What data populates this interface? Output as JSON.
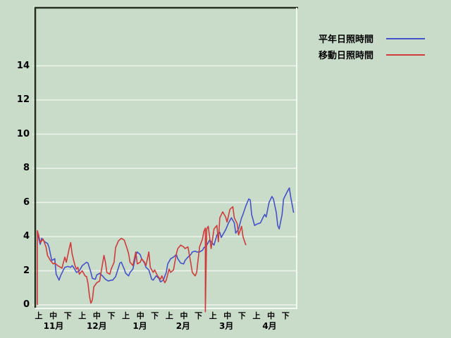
{
  "colors": {
    "background": "#c9dbc9",
    "gridline": "#edf4ec",
    "frame_dark": "#24321f",
    "frame_light": "#f2f8f0",
    "frame_outer_highlight": "#dcE8da",
    "text": "#000000",
    "series_blue": "#4652c8",
    "series_red": "#cf3c3c"
  },
  "legend": {
    "items": [
      {
        "label": "平年日照時間",
        "color": "#4652c8"
      },
      {
        "label": "移動日照時間",
        "color": "#cf3c3c"
      }
    ]
  },
  "chart_data": {
    "type": "line",
    "title": "",
    "xlabel": "",
    "ylabel": "",
    "grid": true,
    "legend_position": "top-right",
    "y_axis": {
      "ticks": [
        0,
        2,
        4,
        6,
        8,
        10,
        12,
        14
      ],
      "range": [
        0,
        17
      ],
      "tick_labels": [
        "0",
        "2",
        "4",
        "6",
        "8",
        "10",
        "12",
        "14"
      ]
    },
    "x_axis": {
      "unit": "days from Nov 1, one 旬(10-day period) per label",
      "period_labels": [
        "上",
        "中",
        "下",
        "上",
        "中",
        "下",
        "上",
        "中",
        "下",
        "上",
        "中",
        "下",
        "上",
        "中",
        "下",
        "上",
        "中",
        "下"
      ],
      "month_labels": [
        "11月",
        "12月",
        "1月",
        "2月",
        "3月",
        "4月"
      ]
    },
    "series": [
      {
        "name": "平年日照時間",
        "color": "#4652c8",
        "points": [
          [
            0,
            4.3
          ],
          [
            1,
            3.85
          ],
          [
            2,
            3.55
          ],
          [
            3,
            3.9
          ],
          [
            5,
            3.7
          ],
          [
            7,
            3.6
          ],
          [
            8,
            3.4
          ],
          [
            10,
            2.6
          ],
          [
            12,
            2.7
          ],
          [
            13,
            1.8
          ],
          [
            15,
            1.45
          ],
          [
            16,
            1.7
          ],
          [
            18,
            2.05
          ],
          [
            19,
            2.2
          ],
          [
            21,
            2.25
          ],
          [
            23,
            2.2
          ],
          [
            24,
            2.3
          ],
          [
            25,
            2.2
          ],
          [
            27,
            1.9
          ],
          [
            29,
            2.0
          ],
          [
            31,
            2.3
          ],
          [
            34,
            2.5
          ],
          [
            35,
            2.45
          ],
          [
            37,
            1.9
          ],
          [
            38,
            1.55
          ],
          [
            40,
            1.5
          ],
          [
            41,
            1.75
          ],
          [
            43,
            1.85
          ],
          [
            45,
            1.7
          ],
          [
            47,
            1.5
          ],
          [
            49,
            1.4
          ],
          [
            51,
            1.45
          ],
          [
            52,
            1.45
          ],
          [
            54,
            1.65
          ],
          [
            55,
            1.9
          ],
          [
            57,
            2.45
          ],
          [
            58,
            2.5
          ],
          [
            60,
            2.1
          ],
          [
            61,
            1.85
          ],
          [
            63,
            1.7
          ],
          [
            64,
            1.9
          ],
          [
            66,
            2.1
          ],
          [
            68,
            2.9
          ],
          [
            69,
            3.1
          ],
          [
            71,
            2.95
          ],
          [
            72,
            2.7
          ],
          [
            74,
            2.45
          ],
          [
            75,
            2.2
          ],
          [
            77,
            2.05
          ],
          [
            79,
            1.5
          ],
          [
            80,
            1.45
          ],
          [
            82,
            1.7
          ],
          [
            84,
            1.55
          ],
          [
            85,
            1.35
          ],
          [
            87,
            1.45
          ],
          [
            89,
            1.9
          ],
          [
            90,
            2.4
          ],
          [
            92,
            2.7
          ],
          [
            94,
            2.8
          ],
          [
            96,
            2.95
          ],
          [
            97,
            2.7
          ],
          [
            99,
            2.45
          ],
          [
            101,
            2.4
          ],
          [
            102,
            2.6
          ],
          [
            104,
            2.8
          ],
          [
            106,
            2.95
          ],
          [
            107,
            3.1
          ],
          [
            109,
            3.15
          ],
          [
            110,
            3.1
          ],
          [
            112,
            3.1
          ],
          [
            114,
            3.2
          ],
          [
            115,
            3.35
          ],
          [
            117,
            3.5
          ],
          [
            119,
            3.8
          ],
          [
            122,
            3.5
          ],
          [
            124,
            4.1
          ],
          [
            126,
            4.25
          ],
          [
            127,
            3.95
          ],
          [
            130,
            4.4
          ],
          [
            132,
            4.8
          ],
          [
            134,
            5.1
          ],
          [
            136,
            4.8
          ],
          [
            137,
            4.2
          ],
          [
            139,
            4.45
          ],
          [
            141,
            5.1
          ],
          [
            142,
            5.3
          ],
          [
            144,
            5.8
          ],
          [
            146,
            6.2
          ],
          [
            147,
            6.15
          ],
          [
            148,
            5.3
          ],
          [
            150,
            4.65
          ],
          [
            152,
            4.75
          ],
          [
            154,
            4.8
          ],
          [
            156,
            5.15
          ],
          [
            157,
            5.3
          ],
          [
            158,
            5.15
          ],
          [
            160,
            6.0
          ],
          [
            162,
            6.35
          ],
          [
            163,
            6.2
          ],
          [
            165,
            5.4
          ],
          [
            166,
            4.65
          ],
          [
            167,
            4.45
          ],
          [
            169,
            5.3
          ],
          [
            170,
            6.2
          ],
          [
            173,
            6.7
          ],
          [
            174,
            6.85
          ],
          [
            175,
            6.3
          ],
          [
            177,
            5.4
          ]
        ]
      },
      {
        "name": "移動日照時間",
        "color": "#cf3c3c",
        "points": [
          [
            0,
            0.0
          ],
          [
            0,
            4.35
          ],
          [
            1,
            4.05
          ],
          [
            2,
            3.65
          ],
          [
            4,
            3.85
          ],
          [
            6,
            3.4
          ],
          [
            7,
            2.9
          ],
          [
            9,
            2.6
          ],
          [
            11,
            2.4
          ],
          [
            12,
            2.45
          ],
          [
            14,
            2.3
          ],
          [
            16,
            2.2
          ],
          [
            17,
            2.15
          ],
          [
            19,
            2.8
          ],
          [
            20,
            2.5
          ],
          [
            22,
            3.3
          ],
          [
            23,
            3.65
          ],
          [
            24,
            3.0
          ],
          [
            26,
            2.3
          ],
          [
            27,
            2.1
          ],
          [
            28,
            2.2
          ],
          [
            29,
            1.8
          ],
          [
            31,
            2.0
          ],
          [
            33,
            1.7
          ],
          [
            34,
            1.65
          ],
          [
            35,
            1.25
          ],
          [
            36,
            0.5
          ],
          [
            37,
            0.1
          ],
          [
            38,
            0.3
          ],
          [
            39,
            1.05
          ],
          [
            41,
            1.3
          ],
          [
            43,
            1.4
          ],
          [
            44,
            1.9
          ],
          [
            46,
            2.9
          ],
          [
            47,
            2.5
          ],
          [
            48,
            1.9
          ],
          [
            50,
            1.8
          ],
          [
            51,
            2.1
          ],
          [
            53,
            2.5
          ],
          [
            54,
            3.35
          ],
          [
            56,
            3.75
          ],
          [
            58,
            3.9
          ],
          [
            60,
            3.8
          ],
          [
            62,
            3.3
          ],
          [
            63,
            3.0
          ],
          [
            64,
            2.5
          ],
          [
            66,
            2.3
          ],
          [
            68,
            3.1
          ],
          [
            69,
            2.4
          ],
          [
            71,
            2.5
          ],
          [
            72,
            2.7
          ],
          [
            74,
            2.5
          ],
          [
            75,
            2.3
          ],
          [
            77,
            3.1
          ],
          [
            78,
            2.2
          ],
          [
            80,
            1.9
          ],
          [
            81,
            2.05
          ],
          [
            83,
            1.7
          ],
          [
            85,
            1.5
          ],
          [
            86,
            1.7
          ],
          [
            88,
            1.3
          ],
          [
            89,
            1.45
          ],
          [
            91,
            2.1
          ],
          [
            92,
            1.9
          ],
          [
            94,
            2.05
          ],
          [
            96,
            3.0
          ],
          [
            97,
            3.3
          ],
          [
            99,
            3.5
          ],
          [
            101,
            3.4
          ],
          [
            102,
            3.3
          ],
          [
            104,
            3.4
          ],
          [
            106,
            2.45
          ],
          [
            107,
            1.9
          ],
          [
            109,
            1.7
          ],
          [
            110,
            1.9
          ],
          [
            112,
            3.4
          ],
          [
            114,
            3.85
          ],
          [
            115,
            4.3
          ],
          [
            116,
            4.5
          ],
          [
            116,
            -0.4
          ],
          [
            117,
            4.45
          ],
          [
            118,
            4.6
          ],
          [
            120,
            3.3
          ],
          [
            122,
            4.45
          ],
          [
            124,
            4.65
          ],
          [
            125,
            3.7
          ],
          [
            126,
            5.1
          ],
          [
            128,
            5.45
          ],
          [
            130,
            5.15
          ],
          [
            131,
            4.85
          ],
          [
            133,
            5.6
          ],
          [
            135,
            5.75
          ],
          [
            136,
            5.1
          ],
          [
            138,
            4.75
          ],
          [
            139,
            4.1
          ],
          [
            141,
            4.6
          ],
          [
            142,
            4.0
          ],
          [
            144,
            3.5
          ]
        ]
      }
    ]
  }
}
